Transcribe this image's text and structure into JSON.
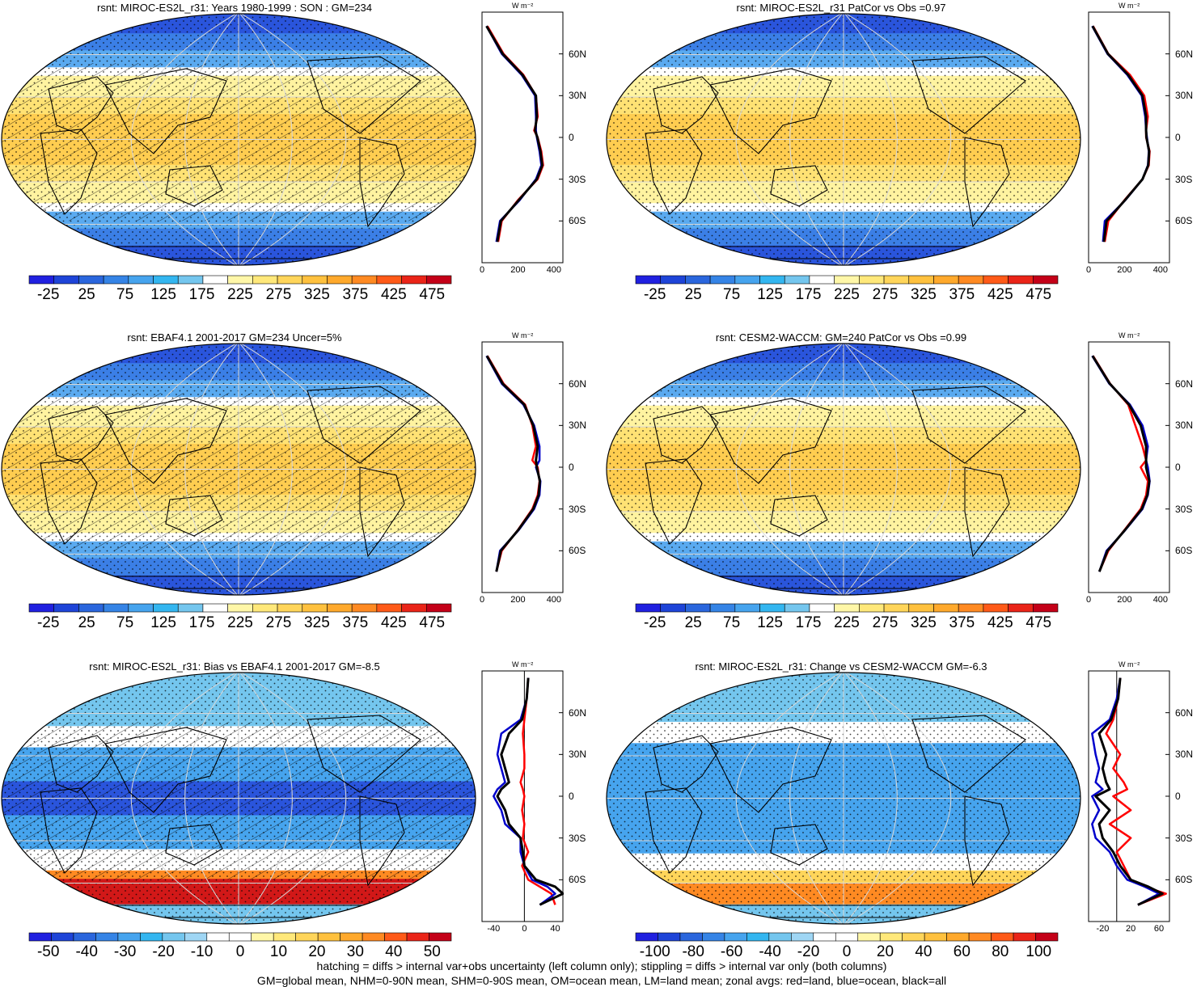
{
  "panels": [
    {
      "id": "p1",
      "title": "rsnt: MIROC-ES2L_r31: Years 1980-1999 : SON : GM=234",
      "kind": "abs",
      "hatch": true,
      "zonal": {
        "ticks": [
          "0",
          "200",
          "400"
        ],
        "xmin": 0,
        "xmax": 450,
        "lat_labels": [
          "60N",
          "30N",
          "0",
          "30S",
          "60S"
        ]
      },
      "colorbar": {
        "labels": [
          "-25",
          "25",
          "75",
          "125",
          "175",
          "225",
          "275",
          "325",
          "375",
          "425",
          "475"
        ]
      }
    },
    {
      "id": "p2",
      "title": "rsnt: MIROC-ES2L_r31 PatCor vs Obs =0.97",
      "kind": "abs",
      "hatch": false,
      "zonal": {
        "ticks": [
          "0",
          "200",
          "400"
        ],
        "xmin": 0,
        "xmax": 450,
        "lat_labels": [
          "60N",
          "30N",
          "0",
          "30S",
          "60S"
        ]
      },
      "colorbar": {
        "labels": [
          "-25",
          "25",
          "75",
          "125",
          "175",
          "225",
          "275",
          "325",
          "375",
          "425",
          "475"
        ]
      }
    },
    {
      "id": "p3",
      "title": "rsnt: EBAF4.1 2001-2017 GM=234 Uncer=5%",
      "kind": "abs",
      "hatch": true,
      "zonal": {
        "ticks": [
          "0",
          "200",
          "400"
        ],
        "xmin": 0,
        "xmax": 450,
        "lat_labels": [
          "60N",
          "30N",
          "0",
          "30S",
          "60S"
        ]
      },
      "colorbar": {
        "labels": [
          "-25",
          "25",
          "75",
          "125",
          "175",
          "225",
          "275",
          "325",
          "375",
          "425",
          "475"
        ]
      }
    },
    {
      "id": "p4",
      "title": "rsnt: CESM2-WACCM: GM=240 PatCor vs Obs =0.99",
      "kind": "abs",
      "hatch": false,
      "zonal": {
        "ticks": [
          "0",
          "200",
          "400"
        ],
        "xmin": 0,
        "xmax": 450,
        "lat_labels": [
          "60N",
          "30N",
          "0",
          "30S",
          "60S"
        ]
      },
      "colorbar": {
        "labels": [
          "-25",
          "25",
          "75",
          "125",
          "175",
          "225",
          "275",
          "325",
          "375",
          "425",
          "475"
        ]
      }
    },
    {
      "id": "p5",
      "title": "rsnt: MIROC-ES2L_r31: Bias vs EBAF4.1 2001-2017  GM=-8.5",
      "kind": "bias",
      "hatch": true,
      "zonal": {
        "ticks": [
          "-40",
          "0",
          "40"
        ],
        "xmin": -55,
        "xmax": 50,
        "lat_labels": [
          "60N",
          "30N",
          "0",
          "30S",
          "60S"
        ]
      },
      "colorbar": {
        "labels": [
          "-50",
          "-40",
          "-30",
          "-20",
          "-10",
          "0",
          "10",
          "20",
          "30",
          "40",
          "50"
        ]
      }
    },
    {
      "id": "p6",
      "title": "rsnt: MIROC-ES2L_r31: Change vs CESM2-WACCM GM=-6.3",
      "kind": "change",
      "hatch": false,
      "zonal": {
        "ticks": [
          "-20",
          "20",
          "60"
        ],
        "xmin": -40,
        "xmax": 75,
        "lat_labels": [
          "60N",
          "30N",
          "0",
          "30S",
          "60S"
        ]
      },
      "colorbar": {
        "labels": [
          "-100",
          "-80",
          "-60",
          "-40",
          "-20",
          "0",
          "20",
          "40",
          "60",
          "80",
          "100"
        ]
      }
    }
  ],
  "units": "W m⁻²",
  "chart_data": [
    {
      "type": "line",
      "title": "rsnt: MIROC-ES2L_r31: Years 1980-1999 : SON : GM=234",
      "xlabel": "W m-2",
      "ylabel": "",
      "xlim": [
        0,
        450
      ],
      "x_ticks": [
        "0",
        "200",
        "400"
      ],
      "y_ticks": [
        "60N",
        "30N",
        "0",
        "30S",
        "60S"
      ],
      "y": [
        80,
        60,
        45,
        30,
        15,
        5,
        0,
        -10,
        -20,
        -30,
        -45,
        -60,
        -75
      ],
      "series": [
        {
          "name": "red",
          "color": "#ff0000",
          "values": [
            30,
            120,
            230,
            300,
            310,
            290,
            310,
            330,
            340,
            310,
            200,
            110,
            90
          ]
        },
        {
          "name": "blue",
          "color": "#0000cc",
          "values": [
            25,
            110,
            220,
            295,
            300,
            300,
            305,
            320,
            330,
            300,
            210,
            100,
            80
          ]
        },
        {
          "name": "black",
          "color": "#000000",
          "values": [
            25,
            115,
            225,
            300,
            305,
            295,
            308,
            325,
            335,
            305,
            205,
            105,
            85
          ]
        }
      ]
    },
    {
      "type": "line",
      "title": "rsnt: MIROC-ES2L_r31 PatCor vs Obs =0.97",
      "xlabel": "W m-2",
      "ylabel": "",
      "xlim": [
        0,
        450
      ],
      "x_ticks": [
        "0",
        "200",
        "400"
      ],
      "y_ticks": [
        "60N",
        "30N",
        "0",
        "30S",
        "60S"
      ],
      "y": [
        80,
        60,
        45,
        30,
        15,
        5,
        0,
        -10,
        -20,
        -30,
        -45,
        -60,
        -75
      ],
      "series": [
        {
          "name": "red",
          "color": "#ff0000",
          "values": [
            25,
            110,
            230,
            310,
            330,
            320,
            320,
            340,
            335,
            300,
            200,
            110,
            90
          ]
        },
        {
          "name": "blue",
          "color": "#0000cc",
          "values": [
            20,
            105,
            215,
            295,
            315,
            320,
            325,
            335,
            330,
            300,
            205,
            90,
            80
          ]
        },
        {
          "name": "black",
          "color": "#000000",
          "values": [
            22,
            108,
            220,
            300,
            320,
            320,
            322,
            337,
            332,
            300,
            203,
            100,
            85
          ]
        }
      ]
    },
    {
      "type": "line",
      "title": "rsnt: EBAF4.1 2001-2017 GM=234 Uncer=5%",
      "xlabel": "W m-2",
      "ylabel": "",
      "xlim": [
        0,
        450
      ],
      "x_ticks": [
        "0",
        "200",
        "400"
      ],
      "y_ticks": [
        "60N",
        "30N",
        "0",
        "30S",
        "60S"
      ],
      "y": [
        80,
        60,
        45,
        30,
        15,
        5,
        0,
        -10,
        -20,
        -30,
        -45,
        -60,
        -75
      ],
      "series": [
        {
          "name": "red",
          "color": "#ff0000",
          "values": [
            30,
            120,
            240,
            280,
            300,
            280,
            310,
            320,
            310,
            280,
            200,
            110,
            80
          ]
        },
        {
          "name": "blue",
          "color": "#0000cc",
          "values": [
            25,
            110,
            230,
            290,
            320,
            320,
            300,
            325,
            320,
            290,
            205,
            100,
            80
          ]
        },
        {
          "name": "black",
          "color": "#000000",
          "values": [
            27,
            115,
            235,
            285,
            310,
            300,
            305,
            322,
            315,
            285,
            202,
            105,
            80
          ]
        }
      ]
    },
    {
      "type": "line",
      "title": "rsnt: CESM2-WACCM: GM=240 PatCor vs Obs =0.99",
      "xlabel": "W m-2",
      "ylabel": "",
      "xlim": [
        0,
        450
      ],
      "x_ticks": [
        "0",
        "200",
        "400"
      ],
      "y_ticks": [
        "60N",
        "30N",
        "0",
        "30S",
        "60S"
      ],
      "y": [
        80,
        60,
        45,
        30,
        15,
        5,
        0,
        -10,
        -20,
        -30,
        -45,
        -60,
        -75
      ],
      "series": [
        {
          "name": "red",
          "color": "#ff0000",
          "values": [
            25,
            120,
            220,
            260,
            300,
            320,
            290,
            330,
            320,
            290,
            200,
            110,
            60
          ]
        },
        {
          "name": "blue",
          "color": "#0000cc",
          "values": [
            20,
            115,
            230,
            300,
            330,
            320,
            330,
            340,
            330,
            300,
            205,
            100,
            60
          ]
        },
        {
          "name": "black",
          "color": "#000000",
          "values": [
            22,
            118,
            225,
            290,
            320,
            320,
            320,
            338,
            327,
            296,
            203,
            105,
            60
          ]
        }
      ]
    },
    {
      "type": "line",
      "title": "rsnt: MIROC-ES2L_r31: Bias vs EBAF4.1 2001-2017  GM=-8.5",
      "xlabel": "W m-2",
      "ylabel": "",
      "xlim": [
        -55,
        50
      ],
      "x_ticks": [
        "-40",
        "0",
        "40"
      ],
      "y_ticks": [
        "60N",
        "30N",
        "0",
        "30S",
        "60S"
      ],
      "y": [
        85,
        70,
        55,
        45,
        30,
        20,
        10,
        5,
        0,
        -10,
        -20,
        -30,
        -40,
        -50,
        -60,
        -65,
        -70,
        -78
      ],
      "series": [
        {
          "name": "red",
          "color": "#ff0000",
          "values": [
            5,
            3,
            0,
            -2,
            0,
            0,
            -5,
            -2,
            0,
            -3,
            0,
            -2,
            5,
            -3,
            5,
            20,
            35,
            40
          ]
        },
        {
          "name": "blue",
          "color": "#0000cc",
          "values": [
            5,
            3,
            -5,
            -30,
            -35,
            -30,
            -25,
            -35,
            -40,
            -30,
            -25,
            -5,
            -5,
            0,
            10,
            30,
            40,
            20
          ]
        },
        {
          "name": "black",
          "color": "#000000",
          "values": [
            5,
            3,
            -3,
            -20,
            -30,
            -25,
            -20,
            -30,
            -35,
            -25,
            -20,
            -5,
            -2,
            0,
            15,
            40,
            50,
            20
          ]
        }
      ]
    },
    {
      "type": "line",
      "title": "rsnt: MIROC-ES2L_r31: Change vs CESM2-WACCM GM=-6.3",
      "xlabel": "W m-2",
      "ylabel": "",
      "xlim": [
        -40,
        75
      ],
      "x_ticks": [
        "-20",
        "20",
        "60"
      ],
      "y_ticks": [
        "60N",
        "30N",
        "0",
        "30S",
        "60S"
      ],
      "y": [
        85,
        70,
        55,
        45,
        30,
        20,
        10,
        5,
        0,
        -10,
        -20,
        -30,
        -40,
        -50,
        -60,
        -65,
        -70,
        -78
      ],
      "series": [
        {
          "name": "red",
          "color": "#ff0000",
          "values": [
            5,
            2,
            -5,
            -15,
            5,
            -5,
            10,
            15,
            -5,
            20,
            -10,
            20,
            0,
            10,
            20,
            40,
            70,
            30
          ]
        },
        {
          "name": "blue",
          "color": "#0000cc",
          "values": [
            5,
            0,
            -10,
            -35,
            -30,
            -25,
            -30,
            -20,
            -35,
            -25,
            -35,
            -30,
            -10,
            0,
            15,
            40,
            60,
            30
          ]
        },
        {
          "name": "black",
          "color": "#000000",
          "values": [
            5,
            2,
            -8,
            -25,
            -15,
            -20,
            -15,
            -10,
            -30,
            -10,
            -25,
            -20,
            -5,
            5,
            20,
            45,
            65,
            30
          ]
        }
      ]
    }
  ],
  "footer": {
    "line1": "hatching = diffs > internal var+obs uncertainty (left column only); stippling = diffs > internal var only (both columns)",
    "line2": "GM=global mean, NHM=0-90N mean, SHM=0-90S mean, OM=ocean mean, LM=land mean; zonal avgs: red=land, blue=ocean, black=all"
  },
  "colors": {
    "abs": [
      "#2020e0",
      "#1e44d8",
      "#2a66dd",
      "#3584e6",
      "#46a4ee",
      "#33b6f0",
      "#74c6ee",
      "#ffffff",
      "#fff7a8",
      "#ffe87a",
      "#ffd55a",
      "#ffc13e",
      "#ffa92c",
      "#ff8a22",
      "#ff5a18",
      "#ea2418",
      "#c40018"
    ],
    "diff": [
      "#2020e0",
      "#1e44d8",
      "#2a66dd",
      "#3584e6",
      "#46a4ee",
      "#33b6f0",
      "#74c6ee",
      "#9fd6f4",
      "#ffffff",
      "#ffffff",
      "#fff7a8",
      "#ffe87a",
      "#ffd55a",
      "#ffc13e",
      "#ffa92c",
      "#ff8a22",
      "#ff5a18",
      "#ea2418",
      "#c40018"
    ]
  }
}
